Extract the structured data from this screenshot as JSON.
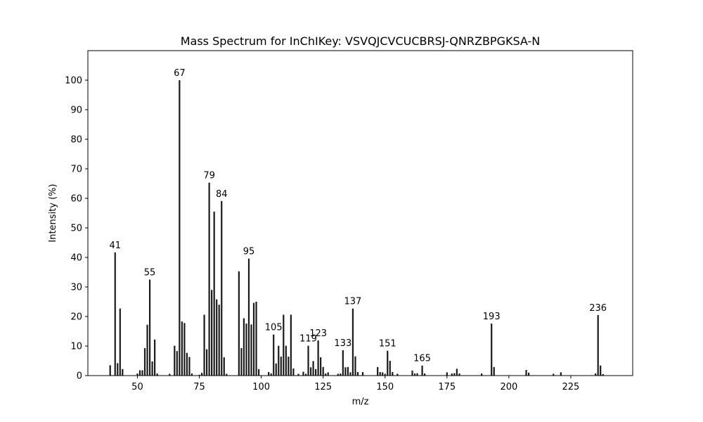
{
  "chart_data": {
    "type": "bar",
    "title": "Mass Spectrum for InChIKey: VSVQJCVCUCBRSJ-QNRZBPGKSA-N",
    "xlabel": "m/z",
    "ylabel": "Intensity (%)",
    "xlim": [
      30,
      250
    ],
    "ylim": [
      0,
      110
    ],
    "xticks": [
      50,
      75,
      100,
      125,
      150,
      175,
      200,
      225
    ],
    "yticks": [
      0,
      10,
      20,
      30,
      40,
      50,
      60,
      70,
      80,
      90,
      100
    ],
    "grid": false,
    "peaks": [
      {
        "mz": 39,
        "intensity": 3.5
      },
      {
        "mz": 41,
        "intensity": 41.7,
        "label": "41"
      },
      {
        "mz": 42,
        "intensity": 4.2
      },
      {
        "mz": 43,
        "intensity": 22.7
      },
      {
        "mz": 44,
        "intensity": 2.2
      },
      {
        "mz": 50,
        "intensity": 0.7
      },
      {
        "mz": 51,
        "intensity": 1.8
      },
      {
        "mz": 52,
        "intensity": 1.8
      },
      {
        "mz": 53,
        "intensity": 9.3
      },
      {
        "mz": 54,
        "intensity": 17.2
      },
      {
        "mz": 55,
        "intensity": 32.5,
        "label": "55"
      },
      {
        "mz": 56,
        "intensity": 4.8
      },
      {
        "mz": 57,
        "intensity": 12.2
      },
      {
        "mz": 58,
        "intensity": 0.7
      },
      {
        "mz": 63,
        "intensity": 0.6
      },
      {
        "mz": 65,
        "intensity": 10.1
      },
      {
        "mz": 66,
        "intensity": 8.3
      },
      {
        "mz": 67,
        "intensity": 100.0,
        "label": "67"
      },
      {
        "mz": 68,
        "intensity": 18.3
      },
      {
        "mz": 69,
        "intensity": 17.8
      },
      {
        "mz": 70,
        "intensity": 7.7
      },
      {
        "mz": 71,
        "intensity": 6.3
      },
      {
        "mz": 72,
        "intensity": 0.7
      },
      {
        "mz": 75,
        "intensity": 0.3
      },
      {
        "mz": 76,
        "intensity": 0.9
      },
      {
        "mz": 77,
        "intensity": 20.6
      },
      {
        "mz": 78,
        "intensity": 8.9
      },
      {
        "mz": 79,
        "intensity": 65.3,
        "label": "79"
      },
      {
        "mz": 80,
        "intensity": 29.0
      },
      {
        "mz": 81,
        "intensity": 55.5
      },
      {
        "mz": 82,
        "intensity": 25.8
      },
      {
        "mz": 83,
        "intensity": 24.0
      },
      {
        "mz": 84,
        "intensity": 59.1,
        "label": "84"
      },
      {
        "mz": 85,
        "intensity": 6.2
      },
      {
        "mz": 86,
        "intensity": 0.6
      },
      {
        "mz": 91,
        "intensity": 35.3
      },
      {
        "mz": 92,
        "intensity": 9.3
      },
      {
        "mz": 93,
        "intensity": 19.4
      },
      {
        "mz": 94,
        "intensity": 17.6
      },
      {
        "mz": 95,
        "intensity": 39.6,
        "label": "95"
      },
      {
        "mz": 96,
        "intensity": 17.3
      },
      {
        "mz": 97,
        "intensity": 24.6
      },
      {
        "mz": 98,
        "intensity": 25.0
      },
      {
        "mz": 99,
        "intensity": 2.2
      },
      {
        "mz": 103,
        "intensity": 1.2
      },
      {
        "mz": 104,
        "intensity": 0.7
      },
      {
        "mz": 105,
        "intensity": 13.9,
        "label": "105"
      },
      {
        "mz": 106,
        "intensity": 4.1
      },
      {
        "mz": 107,
        "intensity": 10.1
      },
      {
        "mz": 108,
        "intensity": 6.4
      },
      {
        "mz": 109,
        "intensity": 20.6
      },
      {
        "mz": 110,
        "intensity": 10.1
      },
      {
        "mz": 111,
        "intensity": 6.4
      },
      {
        "mz": 112,
        "intensity": 20.6
      },
      {
        "mz": 113,
        "intensity": 2.4
      },
      {
        "mz": 115,
        "intensity": 0.6
      },
      {
        "mz": 117,
        "intensity": 1.3
      },
      {
        "mz": 118,
        "intensity": 0.6
      },
      {
        "mz": 119,
        "intensity": 10.1,
        "label": "119"
      },
      {
        "mz": 120,
        "intensity": 2.8
      },
      {
        "mz": 121,
        "intensity": 4.9
      },
      {
        "mz": 122,
        "intensity": 2.2
      },
      {
        "mz": 123,
        "intensity": 11.9,
        "label": "123"
      },
      {
        "mz": 124,
        "intensity": 6.2
      },
      {
        "mz": 125,
        "intensity": 2.9
      },
      {
        "mz": 126,
        "intensity": 0.7
      },
      {
        "mz": 127,
        "intensity": 1.1
      },
      {
        "mz": 131,
        "intensity": 0.6
      },
      {
        "mz": 132,
        "intensity": 0.7
      },
      {
        "mz": 133,
        "intensity": 8.6,
        "label": "133"
      },
      {
        "mz": 134,
        "intensity": 2.8
      },
      {
        "mz": 135,
        "intensity": 2.9
      },
      {
        "mz": 136,
        "intensity": 1.1
      },
      {
        "mz": 137,
        "intensity": 22.7,
        "label": "137"
      },
      {
        "mz": 138,
        "intensity": 6.5
      },
      {
        "mz": 139,
        "intensity": 1.2
      },
      {
        "mz": 141,
        "intensity": 1.2
      },
      {
        "mz": 147,
        "intensity": 2.9
      },
      {
        "mz": 148,
        "intensity": 1.2
      },
      {
        "mz": 149,
        "intensity": 1.1
      },
      {
        "mz": 150,
        "intensity": 0.6
      },
      {
        "mz": 151,
        "intensity": 8.4,
        "label": "151"
      },
      {
        "mz": 152,
        "intensity": 5.0
      },
      {
        "mz": 153,
        "intensity": 1.2
      },
      {
        "mz": 155,
        "intensity": 0.6
      },
      {
        "mz": 161,
        "intensity": 1.7
      },
      {
        "mz": 162,
        "intensity": 0.7
      },
      {
        "mz": 163,
        "intensity": 0.8
      },
      {
        "mz": 165,
        "intensity": 3.4,
        "label": "165"
      },
      {
        "mz": 166,
        "intensity": 0.7
      },
      {
        "mz": 175,
        "intensity": 1.1
      },
      {
        "mz": 177,
        "intensity": 0.7
      },
      {
        "mz": 178,
        "intensity": 0.8
      },
      {
        "mz": 179,
        "intensity": 2.3
      },
      {
        "mz": 180,
        "intensity": 0.7
      },
      {
        "mz": 189,
        "intensity": 0.7
      },
      {
        "mz": 193,
        "intensity": 17.6,
        "label": "193"
      },
      {
        "mz": 194,
        "intensity": 2.9
      },
      {
        "mz": 207,
        "intensity": 1.9
      },
      {
        "mz": 208,
        "intensity": 1.0
      },
      {
        "mz": 218,
        "intensity": 0.6
      },
      {
        "mz": 221,
        "intensity": 1.1
      },
      {
        "mz": 235,
        "intensity": 0.7
      },
      {
        "mz": 236,
        "intensity": 20.5,
        "label": "236"
      },
      {
        "mz": 237,
        "intensity": 3.4
      },
      {
        "mz": 238,
        "intensity": 0.5
      }
    ]
  }
}
